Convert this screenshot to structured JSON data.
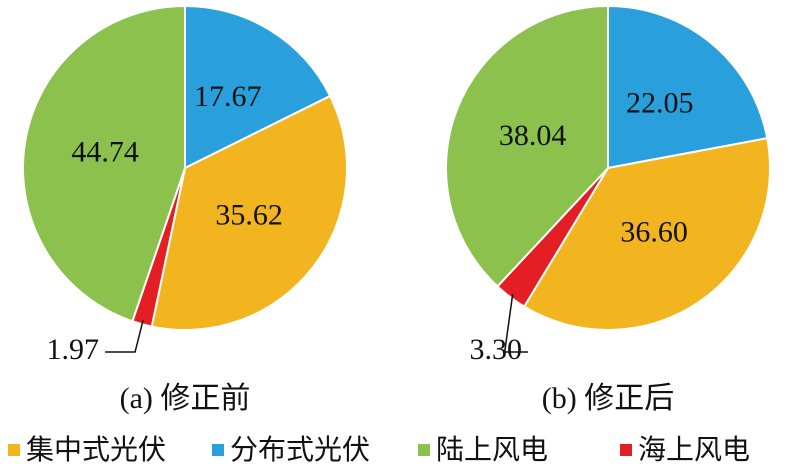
{
  "chart_data": [
    {
      "type": "pie",
      "subtitle": "(a)  修正前",
      "categories": [
        "分布式光伏",
        "集中式光伏",
        "海上风电",
        "陆上风电"
      ],
      "colors": [
        "#29a0db",
        "#f2b51f",
        "#e31e24",
        "#8bc14c"
      ],
      "values": [
        17.67,
        35.62,
        1.97,
        44.74
      ]
    },
    {
      "type": "pie",
      "subtitle": "(b)  修正后",
      "categories": [
        "分布式光伏",
        "集中式光伏",
        "海上风电",
        "陆上风电"
      ],
      "colors": [
        "#29a0db",
        "#f2b51f",
        "#e31e24",
        "#8bc14c"
      ],
      "values": [
        22.05,
        36.6,
        3.3,
        38.04
      ],
      "value_labels": [
        "22.05",
        "36.60",
        "3.30",
        "38.04"
      ]
    }
  ]
}
